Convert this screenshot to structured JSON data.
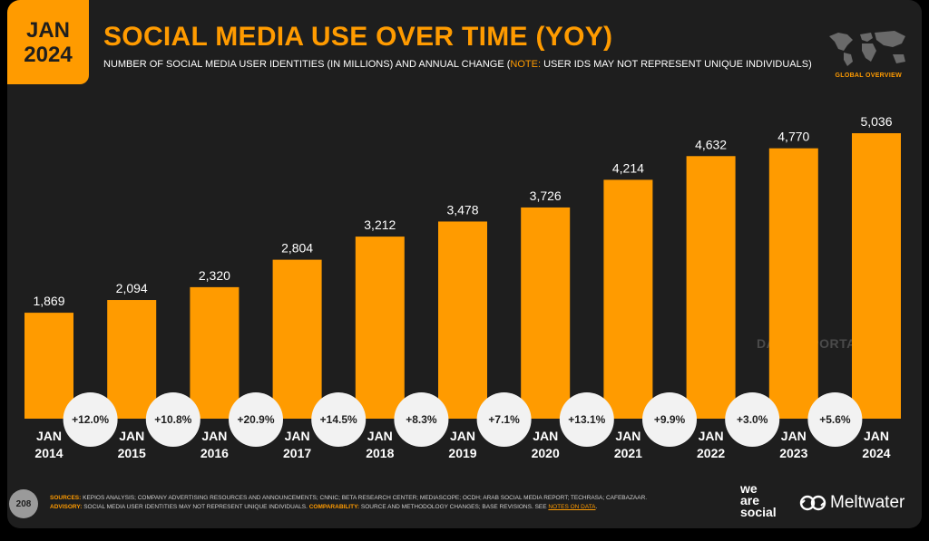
{
  "badge": {
    "line1": "JAN",
    "line2": "2024"
  },
  "header": {
    "title": "SOCIAL MEDIA USE OVER TIME (YOY)",
    "subtitle_pre": "NUMBER OF SOCIAL MEDIA USER IDENTITIES (IN MILLIONS) AND ANNUAL CHANGE (",
    "subtitle_note": "NOTE:",
    "subtitle_post": " USER IDS MAY NOT REPRESENT UNIQUE INDIVIDUALS)",
    "global_label": "GLOBAL OVERVIEW"
  },
  "watermark": "DATAREPORTAL",
  "chart_data": {
    "type": "bar",
    "categories": [
      "JAN 2014",
      "JAN 2015",
      "JAN 2016",
      "JAN 2017",
      "JAN 2018",
      "JAN 2019",
      "JAN 2020",
      "JAN 2021",
      "JAN 2022",
      "JAN 2023",
      "JAN 2024"
    ],
    "values": [
      1869,
      2094,
      2320,
      2804,
      3212,
      3478,
      3726,
      4214,
      4632,
      4770,
      5036
    ],
    "value_labels": [
      "1,869",
      "2,094",
      "2,320",
      "2,804",
      "3,212",
      "3,478",
      "3,726",
      "4,214",
      "4,632",
      "4,770",
      "5,036"
    ],
    "annual_change": [
      "+12.0%",
      "+10.8%",
      "+20.9%",
      "+14.5%",
      "+8.3%",
      "+7.1%",
      "+13.1%",
      "+9.9%",
      "+3.0%",
      "+5.6%"
    ],
    "ylim": [
      0,
      5036
    ],
    "grid": false,
    "bar_color": "#ff9b00"
  },
  "footer": {
    "page_number": "208",
    "sources_label": "SOURCES:",
    "sources_text": " KEPIOS ANALYSIS; COMPANY ADVERTISING RESOURCES AND ANNOUNCEMENTS; CNNIC; BETA RESEARCH CENTER; MEDIASCOPE; OCDH; ARAB SOCIAL MEDIA REPORT; TECHRASA; CAFEBAZAAR.",
    "advisory_label": "ADVISORY:",
    "advisory_text": " SOCIAL MEDIA USER IDENTITIES MAY NOT REPRESENT UNIQUE INDIVIDUALS. ",
    "comparability_label": "COMPARABILITY:",
    "comparability_text": " SOURCE AND METHODOLOGY CHANGES; BASE REVISIONS. SEE ",
    "notes_link": "NOTES ON DATA",
    "end": "."
  },
  "logos": {
    "wearesocial_1": "we",
    "wearesocial_2": "are",
    "wearesocial_3": "social",
    "meltwater": "Meltwater"
  },
  "colors": {
    "accent": "#ff9b00",
    "background": "#1e1e1e"
  }
}
